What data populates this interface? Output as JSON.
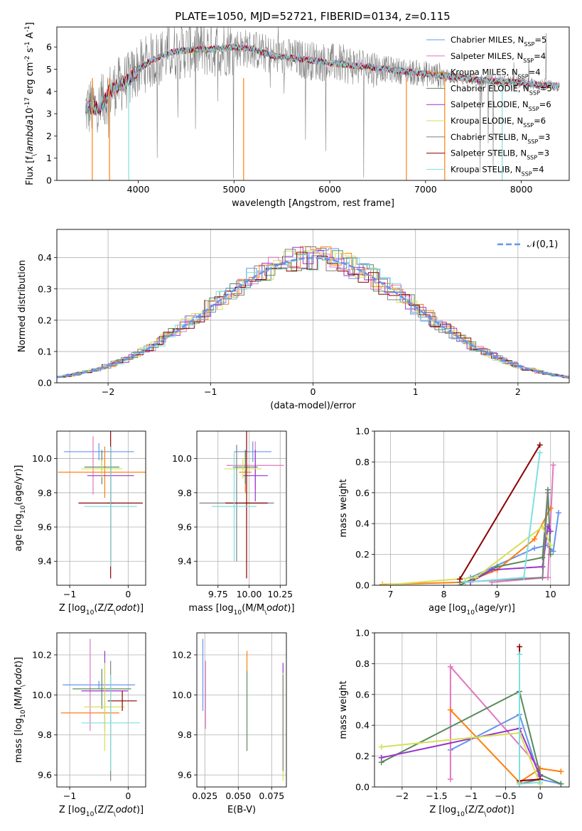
{
  "figure": {
    "title": "PLATE=1050, MJD=52721, FIBERID=0134, z=0.115",
    "colors": [
      "#6495ed",
      "#e377c2",
      "#ff7f0e",
      "#5b8a5b",
      "#9a32cd",
      "#d4e157",
      "#808080",
      "#8b0000",
      "#7fdfdf"
    ]
  },
  "chart_data": [
    {
      "id": "spectrum",
      "type": "line",
      "xlabel": "wavelength [Angstrom, rest frame]",
      "ylabel": "Flux [f$_\\lambda$10$^{-17}$ erg cm$^{-2}$ s$^{-1}$ A$^{-1}$]",
      "xlim": [
        3150,
        8500
      ],
      "ylim": [
        0,
        6.9
      ],
      "xticks": [
        4000,
        5000,
        6000,
        7000,
        8000
      ],
      "yticks": [
        0,
        1,
        2,
        3,
        4,
        5,
        6
      ],
      "grid": false,
      "legend_position": "right",
      "continuum_x": [
        3450,
        3500,
        3600,
        3700,
        3800,
        3900,
        4000,
        4100,
        4200,
        4300,
        4400,
        4600,
        4800,
        5000,
        5200,
        5400,
        5600,
        5800,
        6000,
        6200,
        6400,
        6600,
        6800,
        7000,
        7200,
        7400,
        7600,
        7800,
        8000,
        8200,
        8400
      ],
      "continuum_y": [
        3.2,
        3.3,
        3.2,
        4.0,
        4.3,
        4.5,
        5.0,
        5.3,
        5.5,
        5.7,
        5.8,
        5.9,
        5.9,
        6.0,
        5.9,
        5.6,
        5.5,
        5.4,
        5.3,
        5.2,
        5.1,
        5.0,
        4.9,
        4.8,
        4.7,
        4.6,
        4.5,
        4.45,
        4.4,
        4.3,
        4.25
      ],
      "series": [
        {
          "name": "Chabrier MILES, N$_{SSP}$=5",
          "color": "#6495ed"
        },
        {
          "name": "Salpeter MILES, N$_{SSP}$=4",
          "color": "#e377c2"
        },
        {
          "name": "Kroupa MILES, N$_{SSP}$=4",
          "color": "#ff7f0e"
        },
        {
          "name": "Chabrier ELODIE, N$_{SSP}$=5",
          "color": "#5b8a5b"
        },
        {
          "name": "Salpeter ELODIE, N$_{SSP}$=6",
          "color": "#9a32cd"
        },
        {
          "name": "Kroupa ELODIE, N$_{SSP}$=6",
          "color": "#d4e157"
        },
        {
          "name": "Chabrier STELIB, N$_{SSP}$=3",
          "color": "#808080"
        },
        {
          "name": "Salpeter STELIB, N$_{SSP}$=3",
          "color": "#8b0000"
        },
        {
          "name": "Kroupa STELIB, N$_{SSP}$=4",
          "color": "#7fdfdf"
        }
      ]
    },
    {
      "id": "residuals",
      "type": "line",
      "xlabel": "(data-model)/error",
      "ylabel": "Normed distribution",
      "xlim": [
        -2.5,
        2.5
      ],
      "ylim": [
        0,
        0.49
      ],
      "xticks": [
        -2,
        -1,
        0,
        1,
        2
      ],
      "yticks": [
        0.0,
        0.1,
        0.2,
        0.3,
        0.4
      ],
      "grid": true,
      "legend_position": "top-right",
      "legend": "$\\mathcal{N}(0,1)$",
      "gaussian": {
        "mean": 0,
        "sigma": 1
      }
    },
    {
      "id": "age_vs_Z",
      "type": "scatter",
      "xlabel": "Z [log$_{10}$(Z/Z$_\\odot$)]",
      "ylabel": "age  [log$_{10}$(age/yr)]",
      "xlim": [
        -1.22,
        0.3
      ],
      "ylim": [
        9.26,
        10.16
      ],
      "xticks": [
        -1,
        0
      ],
      "yticks": [
        9.4,
        9.6,
        9.8,
        10.0
      ],
      "grid": true,
      "points": [
        {
          "x": -0.5,
          "xerr": 0.6,
          "y": 10.04,
          "yerr": 0.05
        },
        {
          "x": -0.6,
          "xerr": 0.0,
          "y": 9.96,
          "yerr": 0.17
        },
        {
          "x": -0.4,
          "xerr": 0.8,
          "y": 9.92,
          "yerr": 0.15
        },
        {
          "x": -0.45,
          "xerr": 0.3,
          "y": 9.95,
          "yerr": 0.1
        },
        {
          "x": -0.3,
          "xerr": 0.4,
          "y": 9.9,
          "yerr": 0.15
        },
        {
          "x": -0.45,
          "xerr": 0.35,
          "y": 9.94,
          "yerr": 0.05
        },
        {
          "x": -0.3,
          "xerr": 0.05,
          "y": 9.74,
          "yerr": 0.33
        },
        {
          "x": -0.3,
          "xerr": 0.55,
          "y": 9.74,
          "yerr": 0.44
        },
        {
          "x": -0.3,
          "xerr": 0.45,
          "y": 9.72,
          "yerr": 0.35
        }
      ]
    },
    {
      "id": "age_vs_mass",
      "type": "scatter",
      "xlabel": "mass [log$_{10}$(M/M$_\\odot$)]",
      "ylabel": "",
      "xlim": [
        9.58,
        10.3
      ],
      "ylim": [
        9.26,
        10.16
      ],
      "xticks": [
        9.75,
        10.0,
        10.25
      ],
      "xticklabels": [
        "9.75",
        "10.00",
        "10.25"
      ],
      "yticks": [
        9.4,
        9.6,
        9.8,
        10.0
      ],
      "grid": true,
      "points": [
        {
          "x": 10.03,
          "xerr": 0.15,
          "y": 10.04,
          "yerr": 0.06
        },
        {
          "x": 10.05,
          "xerr": 0.23,
          "y": 9.96,
          "yerr": 0.14
        },
        {
          "x": 9.97,
          "xerr": 0.05,
          "y": 9.92,
          "yerr": 0.12
        },
        {
          "x": 9.97,
          "xerr": 0.1,
          "y": 9.95,
          "yerr": 0.1
        },
        {
          "x": 10.05,
          "xerr": 0.1,
          "y": 9.9,
          "yerr": 0.15
        },
        {
          "x": 9.95,
          "xerr": 0.15,
          "y": 9.94,
          "yerr": 0.06
        },
        {
          "x": 9.9,
          "xerr": 0.3,
          "y": 9.74,
          "yerr": 0.34
        },
        {
          "x": 9.98,
          "xerr": 0.17,
          "y": 9.74,
          "yerr": 0.44
        },
        {
          "x": 9.88,
          "xerr": 0.18,
          "y": 9.72,
          "yerr": 0.32
        }
      ]
    },
    {
      "id": "weight_vs_age",
      "type": "line",
      "xlabel": "age  [log$_{10}$(age/yr)]",
      "ylabel": "mass weight",
      "xlim": [
        6.7,
        10.35
      ],
      "ylim": [
        0,
        1.0
      ],
      "xticks": [
        7,
        8,
        9,
        10
      ],
      "yticks": [
        0.0,
        0.2,
        0.4,
        0.6,
        0.8,
        1.0
      ],
      "grid": true,
      "series": [
        {
          "x": [
            8.5,
            9.7,
            9.95,
            10.05,
            10.15
          ],
          "y": [
            0.05,
            0.24,
            0.26,
            0.22,
            0.47
          ]
        },
        {
          "x": [
            8.9,
            9.95,
            10.05
          ],
          "y": [
            0.02,
            0.05,
            0.78
          ]
        },
        {
          "x": [
            6.85,
            8.4,
            9.0,
            9.7,
            10.0
          ],
          "y": [
            0.005,
            0.02,
            0.1,
            0.3,
            0.5
          ]
        },
        {
          "x": [
            8.3,
            9.0,
            9.85,
            9.95,
            10.0
          ],
          "y": [
            0.0,
            0.12,
            0.18,
            0.62,
            0.2
          ]
        },
        {
          "x": [
            8.5,
            8.9,
            9.85,
            9.95,
            10.0
          ],
          "y": [
            0.02,
            0.1,
            0.12,
            0.38,
            0.35
          ]
        },
        {
          "x": [
            6.85,
            8.6,
            9.85,
            10.0
          ],
          "y": [
            0.0,
            0.05,
            0.38,
            0.26
          ]
        },
        {
          "x": [
            8.3,
            9.85,
            9.95
          ],
          "y": [
            0.02,
            0.05,
            0.6
          ]
        },
        {
          "x": [
            8.3,
            9.8
          ],
          "y": [
            0.04,
            0.91
          ]
        },
        {
          "x": [
            8.4,
            9.5,
            9.8
          ],
          "y": [
            0.02,
            0.05,
            0.86
          ]
        }
      ]
    },
    {
      "id": "mass_vs_Z",
      "type": "scatter",
      "xlabel": "Z [log$_{10}$(Z/Z$_\\odot$)]",
      "ylabel": "mass [log$_{10}$(M/M$_\\odot$)]",
      "xlim": [
        -1.22,
        0.3
      ],
      "ylim": [
        9.54,
        10.31
      ],
      "xticks": [
        -1,
        0
      ],
      "yticks": [
        9.6,
        9.8,
        10.0,
        10.2
      ],
      "grid": true,
      "points": [
        {
          "x": -0.5,
          "xerr": 0.62,
          "y": 10.05,
          "yerr": 0.02
        },
        {
          "x": -0.65,
          "xerr": 0.0,
          "y": 10.05,
          "yerr": 0.23
        },
        {
          "x": -0.65,
          "xerr": 0.5,
          "y": 9.91,
          "yerr": 0.0
        },
        {
          "x": -0.45,
          "xerr": 0.5,
          "y": 10.03,
          "yerr": 0.1
        },
        {
          "x": -0.4,
          "xerr": 0.4,
          "y": 10.02,
          "yerr": 0.2
        },
        {
          "x": -0.4,
          "xerr": 0.35,
          "y": 9.94,
          "yerr": 0.22
        },
        {
          "x": -0.3,
          "xerr": 0.01,
          "y": 9.87,
          "yerr": 0.3
        },
        {
          "x": -0.1,
          "xerr": 0.25,
          "y": 9.97,
          "yerr": 0.05
        },
        {
          "x": -0.3,
          "xerr": 0.5,
          "y": 9.86,
          "yerr": 0.24
        }
      ]
    },
    {
      "id": "mass_vs_EBV",
      "type": "scatter",
      "xlabel": "E(B-V)",
      "ylabel": "",
      "xlim": [
        0.019,
        0.086
      ],
      "ylim": [
        9.54,
        10.31
      ],
      "xticks": [
        0.025,
        0.05,
        0.075
      ],
      "xticklabels": [
        "0.025",
        "0.050",
        "0.075"
      ],
      "yticks": [
        9.6,
        9.8,
        10.0,
        10.2
      ],
      "grid": true,
      "points": [
        {
          "x": 0.0235,
          "xerr": 0.0,
          "y": 10.1,
          "yerr": 0.18
        },
        {
          "x": 0.0255,
          "xerr": 0.0,
          "y": 10.0,
          "yerr": 0.17
        },
        {
          "x": 0.0565,
          "xerr": 0.0,
          "y": 10.17,
          "yerr": 0.05
        },
        {
          "x": 0.0565,
          "xerr": 0.0,
          "y": 9.92,
          "yerr": 0.2
        },
        {
          "x": 0.0835,
          "xerr": 0.0,
          "y": 10.12,
          "yerr": 0.04
        },
        {
          "x": 0.0835,
          "xerr": 0.0,
          "y": 9.84,
          "yerr": 0.27
        },
        {
          "x": 0.0835,
          "xerr": 0.0,
          "y": 9.86,
          "yerr": 0.24
        }
      ]
    },
    {
      "id": "weight_vs_Z",
      "type": "line",
      "xlabel": "Z [log$_{10}$(Z/Z$_\\odot$)]",
      "ylabel": "mass weight",
      "xlim": [
        -2.4,
        0.42
      ],
      "ylim": [
        0,
        1.0
      ],
      "xticks": [
        -2.0,
        -1.5,
        -1.0,
        -0.5,
        0.0
      ],
      "yticks": [
        0.0,
        0.2,
        0.4,
        0.6,
        0.8,
        1.0
      ],
      "grid": true,
      "series": [
        {
          "x": [
            -1.3,
            -0.3,
            0.0,
            0.3
          ],
          "y": [
            0.24,
            0.47,
            0.05,
            0.02
          ]
        },
        {
          "x": [
            -1.3,
            -1.3,
            0.0
          ],
          "y": [
            0.05,
            0.78,
            0.12
          ]
        },
        {
          "x": [
            -1.3,
            -0.3,
            0.0,
            0.3
          ],
          "y": [
            0.5,
            0.03,
            0.12,
            0.1
          ]
        },
        {
          "x": [
            -2.3,
            -0.3,
            0.0,
            0.3
          ],
          "y": [
            0.16,
            0.62,
            0.08,
            0.02
          ]
        },
        {
          "x": [
            -2.3,
            -0.3,
            0.0
          ],
          "y": [
            0.19,
            0.38,
            0.07
          ]
        },
        {
          "x": [
            -2.3,
            -1.0,
            -0.3,
            0.0
          ],
          "y": [
            0.26,
            0.32,
            0.35,
            0.02
          ]
        },
        {
          "x": [
            -0.3,
            0.0
          ],
          "y": [
            0.02,
            0.05
          ]
        },
        {
          "x": [
            -0.3,
            -0.3,
            0.0
          ],
          "y": [
            0.91,
            0.04,
            0.05
          ]
        },
        {
          "x": [
            -0.3,
            -0.3,
            0.0
          ],
          "y": [
            0.86,
            0.02,
            0.03
          ]
        }
      ]
    }
  ]
}
